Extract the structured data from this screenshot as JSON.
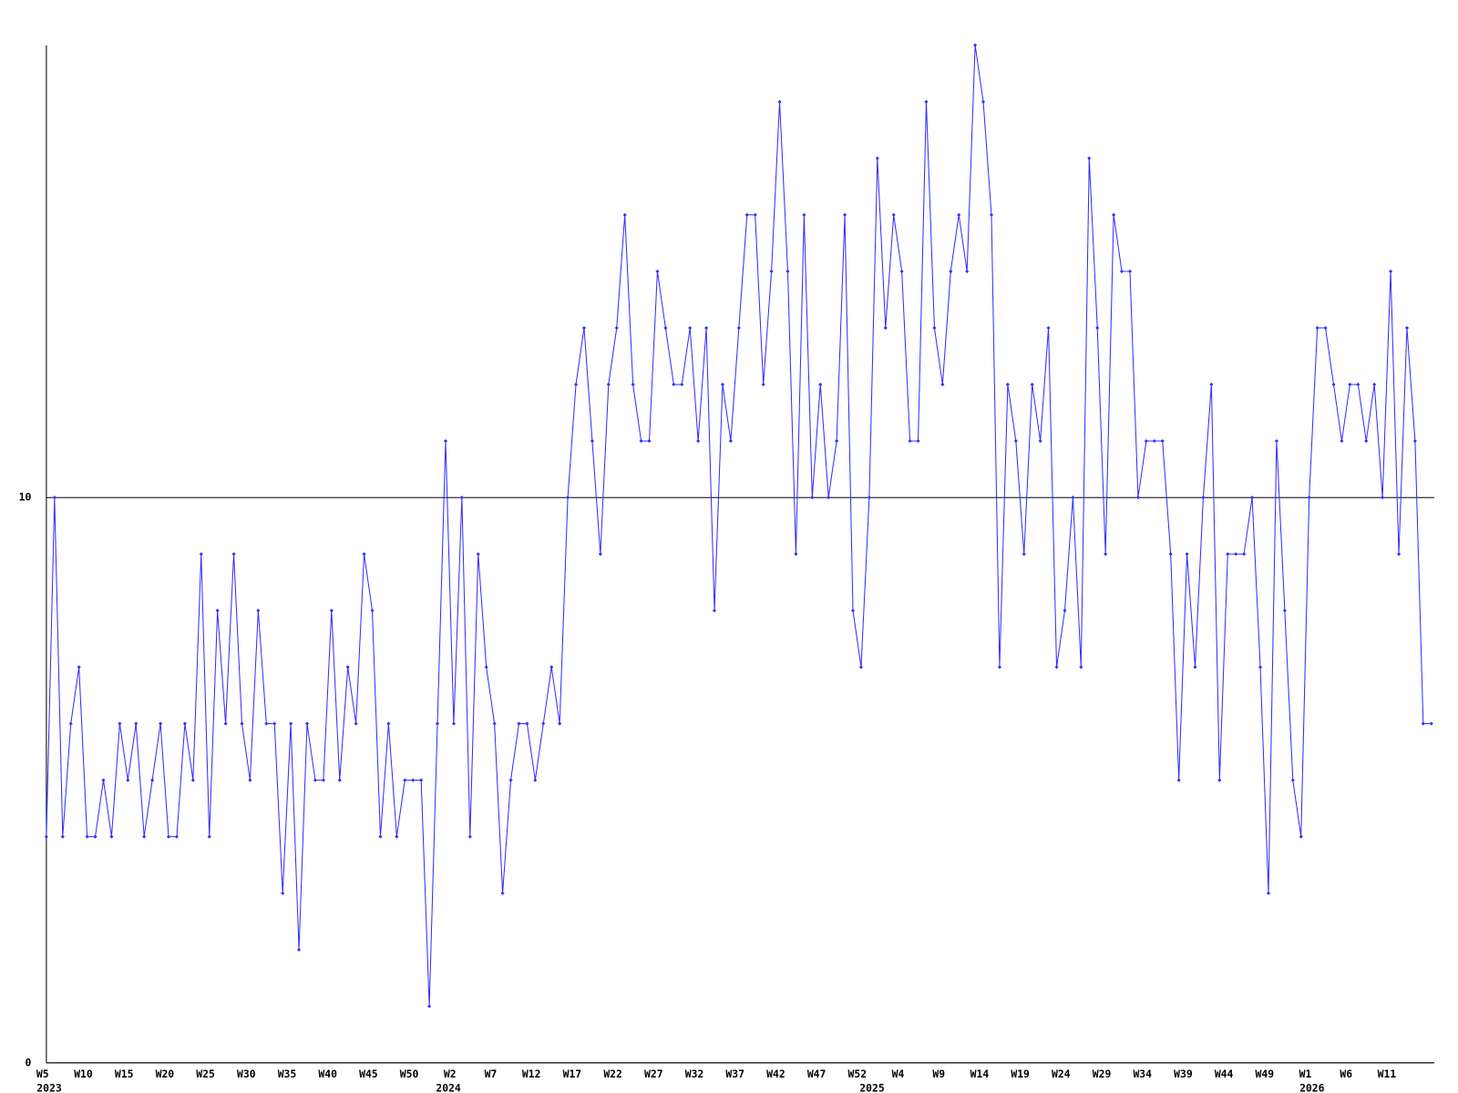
{
  "chart_data": {
    "type": "line",
    "color": "#3030ff",
    "categories": [
      "W5",
      null,
      null,
      null,
      null,
      "W10",
      null,
      null,
      null,
      null,
      "W15",
      null,
      null,
      null,
      null,
      "W20",
      null,
      null,
      null,
      null,
      "W25",
      null,
      null,
      null,
      null,
      "W30",
      null,
      null,
      null,
      null,
      "W35",
      null,
      null,
      null,
      null,
      "W40",
      null,
      null,
      null,
      null,
      "W45",
      null,
      null,
      null,
      null,
      "W50",
      null,
      null,
      null,
      null,
      "W2",
      null,
      null,
      null,
      null,
      "W7",
      null,
      null,
      null,
      null,
      "W12",
      null,
      null,
      null,
      null,
      "W17",
      null,
      null,
      null,
      null,
      "W22",
      null,
      null,
      null,
      null,
      "W27",
      null,
      null,
      null,
      null,
      "W32",
      null,
      null,
      null,
      null,
      "W37",
      null,
      null,
      null,
      null,
      "W42",
      null,
      null,
      null,
      null,
      "W47",
      null,
      null,
      null,
      null,
      "W52",
      null,
      null,
      null,
      null,
      "W4",
      null,
      null,
      null,
      null,
      "W9",
      null,
      null,
      null,
      null,
      "W14",
      null,
      null,
      null,
      null,
      "W19",
      null,
      null,
      null,
      null,
      "W24",
      null,
      null,
      null,
      null,
      "W29",
      null,
      null,
      null,
      null,
      "W34",
      null,
      null,
      null,
      null,
      "W39",
      null,
      null,
      null,
      null,
      "W44",
      null,
      null,
      null,
      null,
      "W49",
      null,
      null,
      null,
      null,
      "W1",
      null,
      null,
      null,
      null,
      "W6",
      null,
      null,
      null,
      null,
      "W11",
      null,
      null,
      null,
      null,
      null
    ],
    "category_years": [
      "2023",
      null,
      null,
      null,
      null,
      null,
      null,
      null,
      null,
      null,
      null,
      null,
      null,
      null,
      null,
      null,
      null,
      null,
      null,
      null,
      null,
      null,
      null,
      null,
      null,
      null,
      null,
      null,
      null,
      null,
      null,
      null,
      null,
      null,
      null,
      null,
      null,
      null,
      null,
      null,
      null,
      null,
      null,
      null,
      null,
      null,
      null,
      null,
      null,
      "2024",
      null,
      null,
      null,
      null,
      null,
      null,
      null,
      null,
      null,
      null,
      null,
      null,
      null,
      null,
      null,
      null,
      null,
      null,
      null,
      null,
      null,
      null,
      null,
      null,
      null,
      null,
      null,
      null,
      null,
      null,
      null,
      null,
      null,
      null,
      null,
      null,
      null,
      null,
      null,
      null,
      null,
      null,
      null,
      null,
      null,
      null,
      null,
      null,
      null,
      null,
      null,
      "2025",
      null,
      null,
      null,
      null,
      null,
      null,
      null,
      null,
      null,
      null,
      null,
      null,
      null,
      null,
      null,
      null,
      null,
      null,
      null,
      null,
      null,
      null,
      null,
      null,
      null,
      null,
      null,
      null,
      null,
      null,
      null,
      null,
      null,
      null,
      null,
      null,
      null,
      null,
      null,
      null,
      null,
      null,
      null,
      null,
      null,
      null,
      null,
      null,
      null,
      null,
      null,
      null,
      null,
      "2026",
      null,
      null,
      null,
      null,
      null,
      null,
      null,
      null,
      null,
      null,
      null,
      null,
      null,
      null,
      null
    ],
    "values": [
      4,
      10,
      4,
      6,
      7,
      4,
      4,
      5,
      4,
      6,
      5,
      6,
      4,
      5,
      6,
      4,
      4,
      6,
      5,
      9,
      4,
      8,
      6,
      9,
      6,
      5,
      8,
      6,
      6,
      3,
      6,
      2,
      6,
      5,
      5,
      8,
      5,
      7,
      6,
      9,
      8,
      4,
      6,
      4,
      5,
      5,
      5,
      1,
      6,
      11,
      6,
      10,
      4,
      9,
      7,
      6,
      3,
      5,
      6,
      6,
      5,
      6,
      7,
      6,
      10,
      12,
      13,
      11,
      9,
      12,
      13,
      15,
      12,
      11,
      11,
      14,
      13,
      12,
      12,
      13,
      11,
      13,
      8,
      12,
      11,
      13,
      15,
      15,
      12,
      14,
      17,
      14,
      9,
      15,
      10,
      12,
      10,
      11,
      15,
      8,
      7,
      10,
      16,
      13,
      15,
      14,
      11,
      11,
      17,
      13,
      12,
      14,
      15,
      14,
      18,
      17,
      15,
      7,
      12,
      11,
      9,
      12,
      11,
      13,
      7,
      8,
      10,
      7,
      16,
      13,
      9,
      15,
      14,
      14,
      10,
      11,
      11,
      11,
      9,
      5,
      9,
      7,
      10,
      12,
      5,
      9,
      9,
      9,
      10,
      7,
      3,
      11,
      8,
      5,
      4,
      10,
      13,
      13,
      12,
      11,
      12,
      12,
      11,
      12,
      10,
      14,
      9,
      13,
      11,
      6,
      6
    ],
    "ylim": [
      0,
      18
    ],
    "yticks": [
      0,
      10
    ],
    "grid": true
  }
}
